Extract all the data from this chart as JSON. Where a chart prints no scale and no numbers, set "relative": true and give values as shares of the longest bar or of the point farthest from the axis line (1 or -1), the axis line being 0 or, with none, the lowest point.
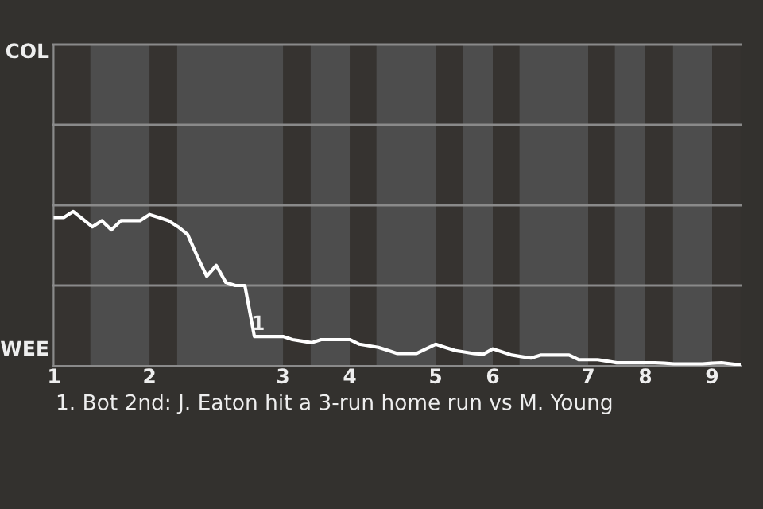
{
  "chart_data": {
    "type": "line",
    "relative": true,
    "categories": [
      "1",
      null,
      null,
      null,
      null,
      null,
      null,
      null,
      null,
      null,
      "2",
      null,
      null,
      null,
      null,
      null,
      null,
      null,
      null,
      null,
      null,
      null,
      null,
      null,
      "3",
      null,
      null,
      null,
      null,
      null,
      null,
      "4",
      null,
      null,
      null,
      null,
      null,
      null,
      null,
      null,
      "5",
      null,
      null,
      null,
      null,
      null,
      "6",
      null,
      null,
      null,
      null,
      null,
      null,
      null,
      null,
      null,
      "7",
      null,
      null,
      null,
      null,
      null,
      "8",
      null,
      null,
      null,
      null,
      null,
      null,
      "9",
      null,
      null,
      null
    ],
    "series": [
      {
        "color": "#ffffff",
        "values": [
          0.96,
          0.96,
          1,
          0.95,
          0.9,
          0.94,
          0.88,
          0.94,
          0.94,
          0.94,
          0.98,
          0.96,
          0.94,
          0.9,
          0.85,
          0.71,
          0.58,
          0.65,
          0.54,
          0.52,
          0.52,
          0.19,
          0.19,
          0.19,
          0.19,
          0.17,
          0.16,
          0.15,
          0.17,
          0.17,
          0.17,
          0.17,
          0.14,
          0.13,
          0.12,
          0.1,
          0.08,
          0.08,
          0.08,
          0.11,
          0.14,
          0.12,
          0.1,
          0.09,
          0.08,
          0.075,
          0.11,
          0.09,
          0.07,
          0.06,
          0.05,
          0.07,
          0.07,
          0.07,
          0.07,
          0.04,
          0.04,
          0.04,
          0.03,
          0.02,
          0.02,
          0.02,
          0.02,
          0.02,
          0.017,
          0.013,
          0.013,
          0.013,
          0.013,
          0.017,
          0.02,
          0.013,
          0.006
        ]
      }
    ],
    "marker": "none",
    "line_style": "solid",
    "ref_lines": [
      {
        "axis": "y",
        "value": 0.52,
        "color": "#8a8a8a"
      },
      {
        "axis": "y",
        "value": 1.04,
        "color": "#8a8a8a"
      },
      {
        "axis": "y",
        "value": 1.56,
        "color": "#8a8a8a"
      },
      {
        "axis": "y",
        "value": 2.08,
        "color": "#8a8a8a"
      }
    ],
    "annotations": [
      "COL",
      "WEE",
      "1",
      "1. Bot 2nd: J. Eaton hit a 3-run home run vs M. Young"
    ]
  }
}
